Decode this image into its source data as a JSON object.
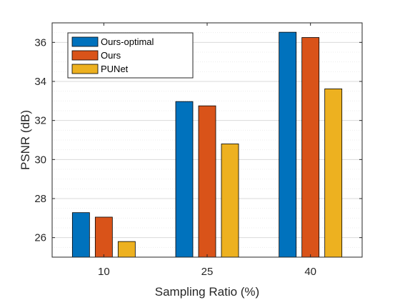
{
  "chart_data": {
    "type": "bar",
    "xlabel": "Sampling Ratio (%)",
    "ylabel": "PSNR (dB)",
    "categories": [
      "10",
      "25",
      "40"
    ],
    "series": [
      {
        "name": "Ours-optimal",
        "color": "#0072BD",
        "values": [
          27.28,
          32.97,
          36.52
        ]
      },
      {
        "name": "Ours",
        "color": "#D95319",
        "values": [
          27.05,
          32.75,
          36.25
        ]
      },
      {
        "name": "PUNet",
        "color": "#EDB120",
        "values": [
          25.8,
          30.8,
          33.62
        ]
      }
    ],
    "ylim": [
      25,
      37
    ],
    "yticks": [
      26,
      28,
      30,
      32,
      34,
      36
    ],
    "grid": "major and minor",
    "legend_position": "top-left"
  }
}
